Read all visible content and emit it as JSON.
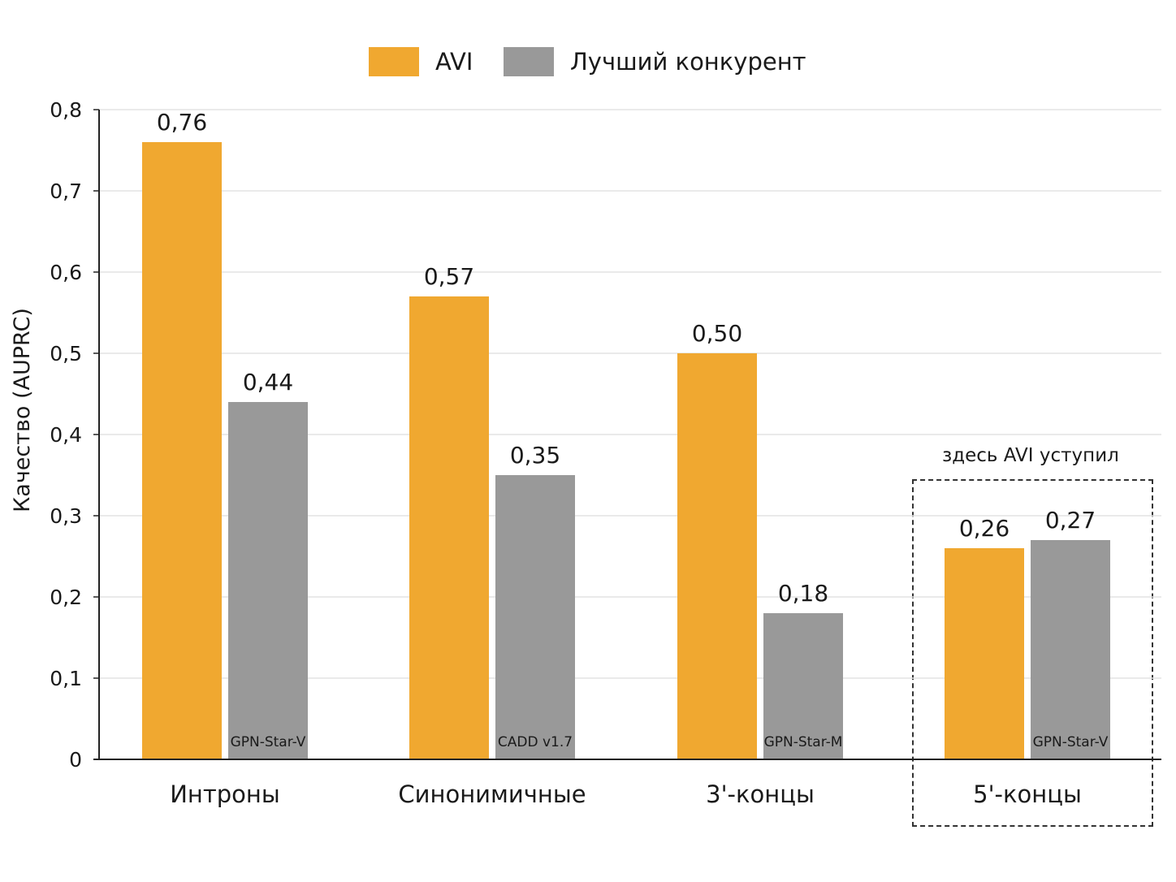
{
  "chart_data": {
    "type": "bar",
    "title": "",
    "xlabel": "",
    "ylabel": "Качество (AUPRC)",
    "ylim": [
      0,
      0.8
    ],
    "yticks": [
      0,
      0.1,
      0.2,
      0.3,
      0.4,
      0.5,
      0.6,
      0.7,
      0.8
    ],
    "ytick_labels": [
      "0",
      "0,1",
      "0,2",
      "0,3",
      "0,4",
      "0,5",
      "0,6",
      "0,7",
      "0,8"
    ],
    "grid": true,
    "legend_position": "top-center",
    "categories": [
      "Интроны",
      "Синонимичные",
      "3'-концы",
      "5'-концы"
    ],
    "series": [
      {
        "name": "AVI",
        "color": "#f0a830",
        "values": [
          0.76,
          0.57,
          0.5,
          0.26
        ],
        "labels": [
          "0,76",
          "0,57",
          "0,50",
          "0,26"
        ]
      },
      {
        "name": "Лучший конкурент",
        "color": "#999999",
        "values": [
          0.44,
          0.35,
          0.18,
          0.27
        ],
        "labels": [
          "0,44",
          "0,35",
          "0,18",
          "0,27"
        ],
        "bar_names": [
          "GPN-Star-V",
          "CADD v1.7",
          "GPN-Star-M",
          "GPN-Star-V"
        ]
      }
    ],
    "annotations": [
      {
        "text": "здесь AVI уступил",
        "category": "5'-концы",
        "style": "dashed-box"
      }
    ]
  }
}
